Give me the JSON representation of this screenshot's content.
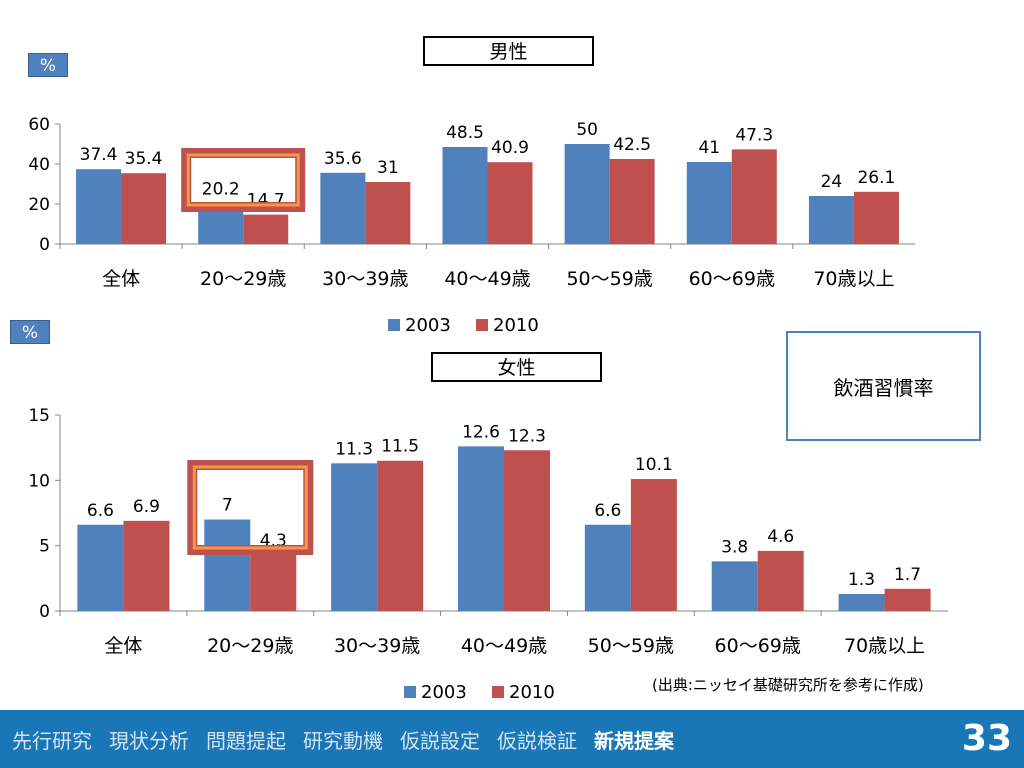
{
  "colors": {
    "s2003": "#4f81bd",
    "s2010": "#c0504d",
    "highlight_outer": "#c0504d",
    "highlight_inner": "#f79646",
    "footer_bg": "#1976b7"
  },
  "callout": {
    "text": "飲酒習慣率"
  },
  "source": "(出典:ニッセイ基礎研究所を参考に作成)",
  "footer": {
    "nav": [
      "先行研究",
      "現状分析",
      "問題提起",
      "研究動機",
      "仮説設定",
      "仮説検証",
      "新規提案"
    ],
    "active_index": 6,
    "page_number": "33"
  },
  "chart_data": [
    {
      "type": "bar",
      "title": "男性",
      "unit_badge": "%",
      "categories": [
        "全体",
        "20～29歳",
        "30～39歳",
        "40～49歳",
        "50～59歳",
        "60～69歳",
        "70歳以上"
      ],
      "series": [
        {
          "name": "2003",
          "values": [
            37.4,
            20.2,
            35.6,
            48.5,
            50,
            41,
            24
          ]
        },
        {
          "name": "2010",
          "values": [
            35.4,
            14.7,
            31,
            40.9,
            42.5,
            47.3,
            26.1
          ]
        }
      ],
      "ylim": [
        0,
        60
      ],
      "yticks": [
        0,
        20,
        40,
        60
      ],
      "grid": false,
      "legend": "bottom",
      "highlight_category": 1
    },
    {
      "type": "bar",
      "title": "女性",
      "unit_badge": "%",
      "categories": [
        "全体",
        "20～29歳",
        "30～39歳",
        "40～49歳",
        "50～59歳",
        "60～69歳",
        "70歳以上"
      ],
      "series": [
        {
          "name": "2003",
          "values": [
            6.6,
            7,
            11.3,
            12.6,
            6.6,
            3.8,
            1.3
          ]
        },
        {
          "name": "2010",
          "values": [
            6.9,
            4.3,
            11.5,
            12.3,
            10.1,
            4.6,
            1.7
          ]
        }
      ],
      "ylim": [
        0,
        15
      ],
      "yticks": [
        0,
        5,
        10,
        15
      ],
      "grid": false,
      "legend": "bottom",
      "highlight_category": 1
    }
  ]
}
